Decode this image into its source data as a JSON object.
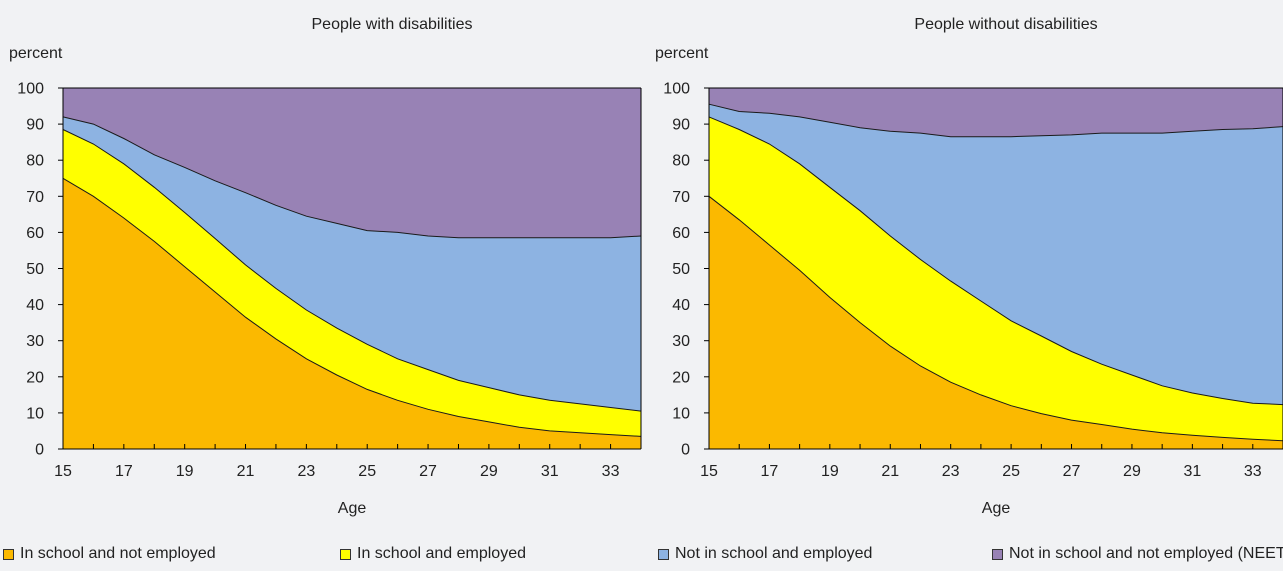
{
  "chart_data": [
    {
      "type": "area",
      "stacked": true,
      "title": "People with disabilities",
      "ylabel": "percent",
      "xlabel": "Age",
      "ylim": [
        0,
        100
      ],
      "yticks": [
        0,
        10,
        20,
        30,
        40,
        50,
        60,
        70,
        80,
        90,
        100
      ],
      "xlim": [
        15,
        34
      ],
      "xticks": [
        15,
        17,
        19,
        21,
        23,
        25,
        27,
        29,
        31,
        33
      ],
      "x": [
        15,
        16,
        17,
        18,
        19,
        20,
        21,
        22,
        23,
        24,
        25,
        26,
        27,
        28,
        29,
        30,
        31,
        32,
        33,
        34
      ],
      "series": [
        {
          "name": "In school and not employed",
          "color": "#fbb900",
          "values": [
            75,
            70,
            64,
            57.5,
            50.5,
            43.5,
            36.5,
            30.5,
            25,
            20.5,
            16.5,
            13.5,
            11,
            9,
            7.5,
            6,
            5,
            4.5,
            4,
            3.5
          ]
        },
        {
          "name": "In school and employed",
          "color": "#ffff00",
          "values": [
            13.5,
            14.5,
            15,
            15,
            15,
            14.8,
            14.5,
            14,
            13.5,
            13,
            12.5,
            11.5,
            11,
            10,
            9.5,
            9,
            8.5,
            8,
            7.5,
            7
          ]
        },
        {
          "name": "Not in school and employed",
          "color": "#8db3e2",
          "values": [
            3.5,
            5.5,
            7,
            9,
            12.5,
            16,
            20,
            23,
            26,
            29,
            31.5,
            35,
            37,
            39.5,
            41.5,
            43.5,
            45,
            46,
            47,
            48.5
          ]
        },
        {
          "name": "Not in school and not employed (NEET)",
          "color": "#9882b5",
          "values": [
            8,
            10,
            14,
            18.5,
            22,
            25.7,
            29,
            32.5,
            35.5,
            37.5,
            39.5,
            40,
            41,
            41.5,
            41.5,
            41.5,
            41.5,
            41.5,
            41.5,
            41
          ]
        }
      ]
    },
    {
      "type": "area",
      "stacked": true,
      "title": "People without disabilities",
      "ylabel": "percent",
      "xlabel": "Age",
      "ylim": [
        0,
        100
      ],
      "yticks": [
        0,
        10,
        20,
        30,
        40,
        50,
        60,
        70,
        80,
        90,
        100
      ],
      "xlim": [
        15,
        34
      ],
      "xticks": [
        15,
        17,
        19,
        21,
        23,
        25,
        27,
        29,
        31,
        33
      ],
      "x": [
        15,
        16,
        17,
        18,
        19,
        20,
        21,
        22,
        23,
        24,
        25,
        26,
        27,
        28,
        29,
        30,
        31,
        32,
        33,
        34
      ],
      "series": [
        {
          "name": "In school and not employed",
          "color": "#fbb900",
          "values": [
            70,
            63.5,
            56.5,
            49.5,
            42,
            35,
            28.5,
            23,
            18.5,
            15,
            12,
            9.8,
            8,
            6.8,
            5.5,
            4.5,
            3.8,
            3.2,
            2.7,
            2.3
          ]
        },
        {
          "name": "In school and employed",
          "color": "#ffff00",
          "values": [
            22,
            25,
            28,
            29.5,
            30.5,
            31,
            30.5,
            29.5,
            28,
            26,
            23.5,
            21.5,
            19,
            16.7,
            15,
            13,
            11.7,
            10.8,
            10,
            10
          ]
        },
        {
          "name": "Not in school and employed",
          "color": "#8db3e2",
          "values": [
            3.5,
            5,
            8.5,
            13,
            18,
            23,
            29,
            35,
            40,
            45.5,
            51,
            55.5,
            60,
            64,
            67,
            70,
            72.5,
            74.5,
            76,
            77
          ]
        },
        {
          "name": "Not in school and not employed (NEET)",
          "color": "#9882b5",
          "values": [
            4.5,
            6.5,
            7,
            8,
            9.5,
            11,
            12,
            12.5,
            13.5,
            13.5,
            13.5,
            13.2,
            13,
            12.5,
            12.5,
            12.5,
            12,
            11.5,
            11.3,
            10.7
          ]
        }
      ]
    }
  ],
  "legend": [
    {
      "label": "In school and not employed",
      "color": "#fbb900"
    },
    {
      "label": "In school and employed",
      "color": "#ffff00"
    },
    {
      "label": "Not in school and employed",
      "color": "#8db3e2"
    },
    {
      "label": "Not in school and not employed (NEET)",
      "color": "#9882b5"
    }
  ]
}
